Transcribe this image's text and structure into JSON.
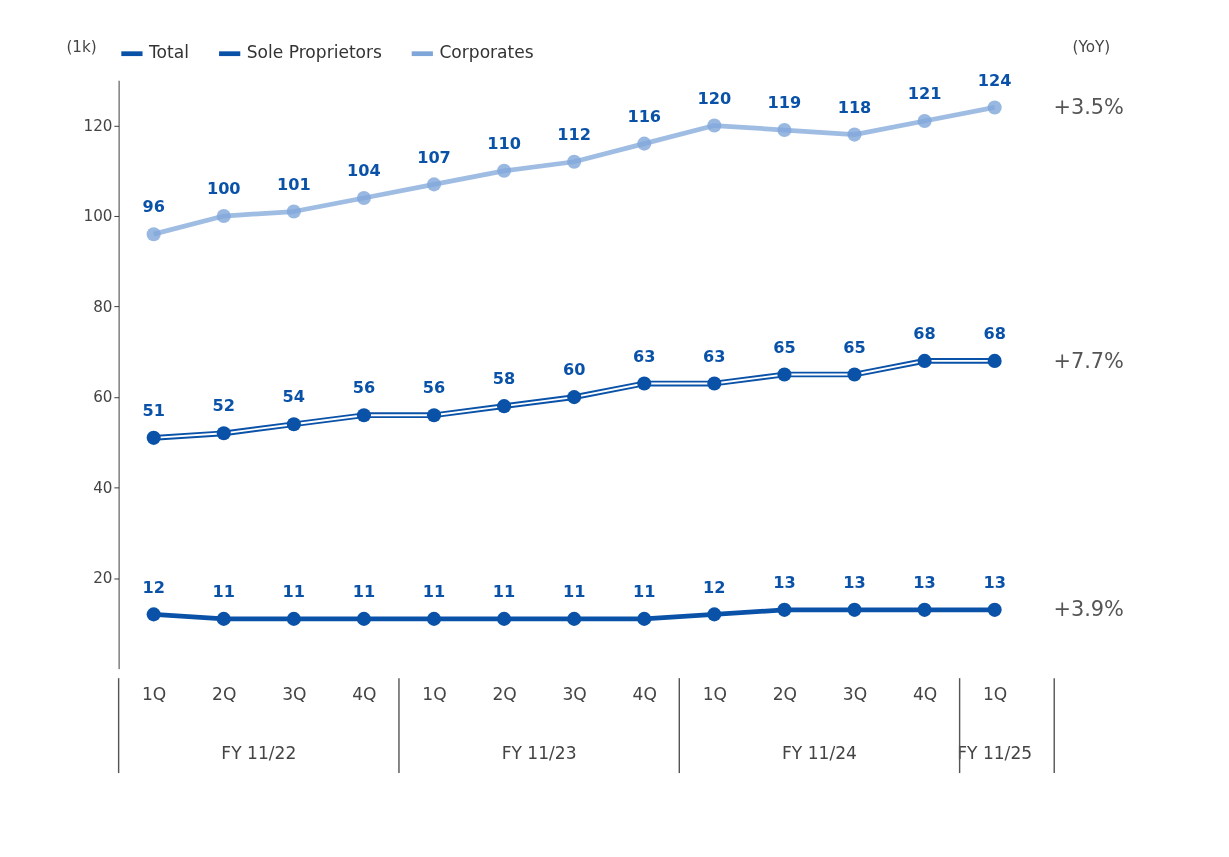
{
  "chart_data": {
    "type": "line",
    "categories": [
      "1Q",
      "2Q",
      "3Q",
      "4Q",
      "1Q",
      "2Q",
      "3Q",
      "4Q",
      "1Q",
      "2Q",
      "3Q",
      "4Q",
      "1Q"
    ],
    "series": [
      {
        "name": "Total",
        "color": "#0a52a8",
        "values": [
          51,
          52,
          54,
          56,
          56,
          58,
          60,
          63,
          63,
          65,
          65,
          68,
          68
        ]
      },
      {
        "name": "Sole Proprietors",
        "color": "#0a52a8",
        "values": [
          12,
          11,
          11,
          11,
          11,
          11,
          11,
          11,
          12,
          13,
          13,
          13,
          13
        ]
      },
      {
        "name": "Corporates",
        "color": "#7fa6d9",
        "values": [
          96,
          100,
          101,
          104,
          107,
          110,
          112,
          116,
          120,
          119,
          118,
          121,
          124
        ]
      }
    ],
    "ylim": [
      0,
      130
    ],
    "yticks": [
      20,
      40,
      60,
      80,
      100,
      120
    ],
    "data_labels": true,
    "marker": "circle",
    "line_style": "solid",
    "grid": false,
    "legend": "top",
    "annotations": [
      "(1k)",
      "(YoY)",
      "+3.5%",
      "+7.7%",
      "+3.9%",
      "FY 11/22",
      "FY 11/23",
      "FY 11/24",
      "FY 11/25"
    ]
  }
}
